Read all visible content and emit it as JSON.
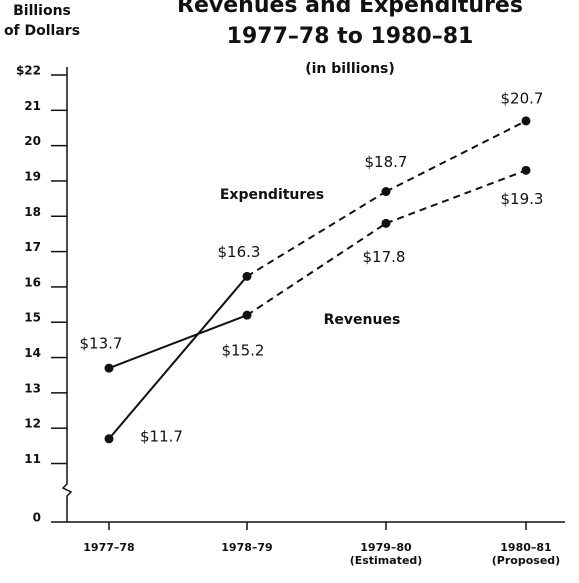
{
  "chart_data": {
    "type": "line",
    "title": "Revenues and Expenditures",
    "subtitle": "1977–78 to 1980–81",
    "note": "(in billions)",
    "y_label": [
      "Billions",
      "of Dollars"
    ],
    "categories": [
      "1977–78",
      "1978–79",
      "1979–80",
      "1980–81"
    ],
    "category_notes": [
      null,
      null,
      "(Estimated)",
      "(Proposed)"
    ],
    "series": [
      {
        "name": "Expenditures",
        "color": "#111111",
        "values": [
          11.7,
          16.3,
          18.7,
          20.7
        ],
        "value_labels": [
          "$11.7",
          "$16.3",
          "$18.7",
          "$20.7"
        ]
      },
      {
        "name": "Revenues",
        "color": "#111111",
        "values": [
          13.7,
          15.2,
          17.8,
          19.3
        ],
        "value_labels": [
          "$13.7",
          "$15.2",
          "$17.8",
          "$19.3"
        ]
      }
    ],
    "ylim": [
      0,
      22
    ],
    "axis_break": [
      0,
      10.25
    ],
    "yticks": [
      0,
      11,
      12,
      13,
      14,
      15,
      16,
      17,
      18,
      19,
      20,
      21,
      {
        "value": 22,
        "label": "$22"
      }
    ],
    "dashed_from_index": 1
  }
}
